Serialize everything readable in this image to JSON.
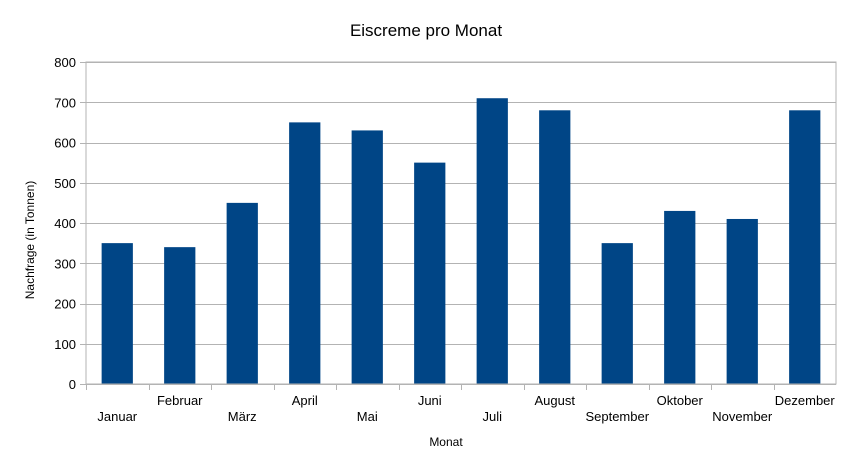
{
  "chart_data": {
    "type": "bar",
    "title": "Eiscreme pro Monat",
    "xlabel": "Monat",
    "ylabel": "Nachfrage (in Tonnen)",
    "ylim": [
      0,
      800
    ],
    "yticks": [
      0,
      100,
      200,
      300,
      400,
      500,
      600,
      700,
      800
    ],
    "grid": true,
    "legend": "none",
    "categories": [
      "Januar",
      "Februar",
      "März",
      "April",
      "Mai",
      "Juni",
      "Juli",
      "August",
      "September",
      "Oktober",
      "November",
      "Dezember"
    ],
    "series": [
      {
        "values": [
          350,
          340,
          450,
          650,
          630,
          550,
          710,
          680,
          350,
          430,
          410,
          680
        ],
        "color": "#004586"
      }
    ]
  }
}
